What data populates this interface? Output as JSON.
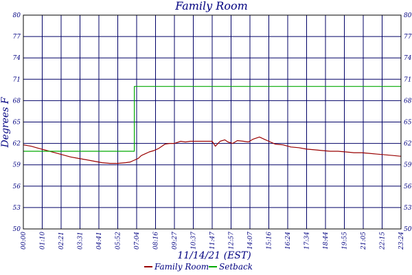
{
  "chart_data": {
    "type": "line",
    "title": "Family Room",
    "xlabel": "11/14/21 (EST)",
    "ylabel": "Degrees F",
    "y_ticks": [
      "50",
      "53",
      "56",
      "59",
      "62",
      "65",
      "68",
      "71",
      "74",
      "77",
      "80"
    ],
    "ylim": [
      50,
      80
    ],
    "x_ticks": [
      "00:00",
      "01:10",
      "02:21",
      "03:31",
      "04:41",
      "05:52",
      "07:04",
      "08:16",
      "09:27",
      "10:37",
      "11:47",
      "12:57",
      "14:07",
      "15:16",
      "16:24",
      "17:34",
      "18:44",
      "19:55",
      "21:05",
      "22:15",
      "23:24"
    ],
    "x_range_hours": [
      0,
      24
    ],
    "grid": true,
    "legend_position": "bottom",
    "series": [
      {
        "name": "Family Room",
        "color": "#990000",
        "x": [
          0,
          0.5,
          1,
          1.5,
          2,
          2.5,
          3,
          3.5,
          4,
          4.5,
          5,
          5.5,
          6,
          6.5,
          6.8,
          7,
          7.3,
          7.5,
          7.8,
          8,
          8.3,
          8.6,
          9,
          9.3,
          9.6,
          10,
          10.3,
          10.6,
          11,
          11.5,
          12,
          12.2,
          12.5,
          12.8,
          13,
          13.3,
          13.6,
          14,
          14.3,
          14.6,
          15,
          15.3,
          15.6,
          16,
          16.5,
          17,
          17.5,
          18,
          18.5,
          19,
          19.5,
          20,
          20.5,
          21,
          21.5,
          22,
          22.5,
          23,
          23.5,
          24
        ],
        "y": [
          61.8,
          61.6,
          61.3,
          61.0,
          60.7,
          60.4,
          60.1,
          59.9,
          59.7,
          59.5,
          59.3,
          59.2,
          59.2,
          59.3,
          59.4,
          59.6,
          59.9,
          60.3,
          60.6,
          60.8,
          61.0,
          61.3,
          61.9,
          62.0,
          62.0,
          62.3,
          62.2,
          62.3,
          62.3,
          62.3,
          62.3,
          61.6,
          62.3,
          62.5,
          62.2,
          62.0,
          62.4,
          62.3,
          62.2,
          62.6,
          62.9,
          62.6,
          62.3,
          61.9,
          61.8,
          61.5,
          61.4,
          61.2,
          61.1,
          61.0,
          60.9,
          60.9,
          60.8,
          60.7,
          60.7,
          60.6,
          60.5,
          60.4,
          60.3,
          60.2
        ]
      },
      {
        "name": "Setback",
        "color": "#00aa00",
        "x": [
          0,
          7.05,
          7.05,
          24
        ],
        "y": [
          60.9,
          60.9,
          70.0,
          70.0
        ]
      }
    ]
  }
}
